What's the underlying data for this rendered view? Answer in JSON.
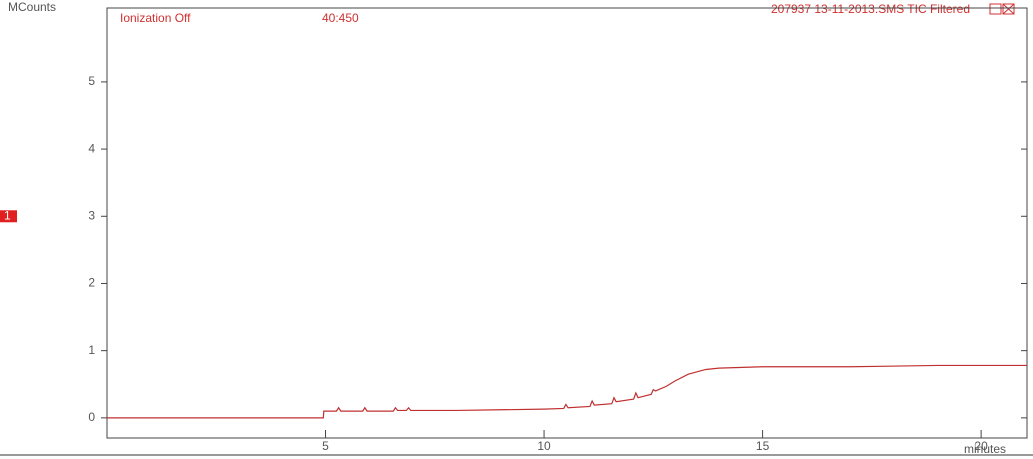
{
  "chart_data": {
    "type": "line",
    "y_label": "MCounts",
    "x_label": "minutes",
    "annotations": [
      "Ionization Off",
      "40:450"
    ],
    "title": "207937 13-11-2013.SMS TIC Filtered",
    "marker_label": "1",
    "marker_value": 3,
    "xlim": [
      0,
      21.05
    ],
    "ylim": [
      -0.3,
      6.1
    ],
    "xticks": [
      5,
      10,
      15,
      20
    ],
    "yticks": [
      0,
      1,
      2,
      3,
      4,
      5
    ],
    "x": [
      0,
      4.95,
      4.96,
      5.25,
      5.3,
      5.35,
      5.85,
      5.9,
      5.95,
      6.55,
      6.6,
      6.65,
      6.85,
      6.9,
      6.95,
      8,
      9,
      10,
      10.45,
      10.5,
      10.55,
      11.05,
      11.1,
      11.15,
      11.55,
      11.6,
      11.65,
      12.05,
      12.1,
      12.15,
      12.45,
      12.5,
      12.55,
      12.8,
      13.0,
      13.3,
      13.7,
      14,
      15,
      17,
      19,
      21.05
    ],
    "series": [
      {
        "name": "TIC",
        "color": "#c03030",
        "values": [
          0,
          0,
          0.1,
          0.1,
          0.15,
          0.1,
          0.1,
          0.15,
          0.1,
          0.1,
          0.15,
          0.11,
          0.11,
          0.15,
          0.11,
          0.11,
          0.12,
          0.13,
          0.14,
          0.2,
          0.15,
          0.17,
          0.25,
          0.19,
          0.21,
          0.3,
          0.24,
          0.28,
          0.37,
          0.3,
          0.35,
          0.42,
          0.4,
          0.47,
          0.55,
          0.65,
          0.72,
          0.74,
          0.76,
          0.76,
          0.78,
          0.78
        ]
      }
    ]
  }
}
